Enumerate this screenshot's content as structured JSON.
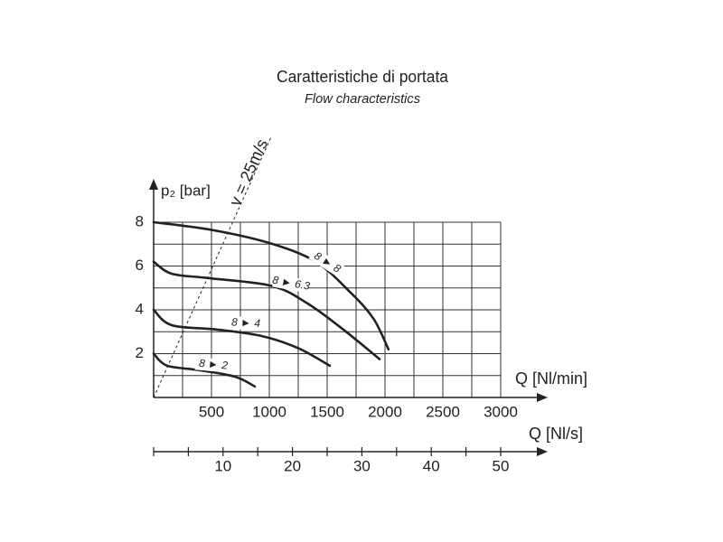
{
  "chart_data": {
    "type": "line",
    "title": "Caratteristiche di portata",
    "subtitle": "Flow characteristics",
    "xlabel": "Q [Nl/min]",
    "ylabel": "p₂ [bar]",
    "xlim": [
      0,
      3000
    ],
    "xticks": [
      500,
      1000,
      1500,
      2000,
      2500,
      3000
    ],
    "xgrid": [
      250,
      500,
      750,
      1000,
      1250,
      1500,
      1750,
      2000,
      2250,
      2500,
      2750,
      3000
    ],
    "ylim": [
      0,
      8
    ],
    "yticks": [
      2,
      4,
      6,
      8
    ],
    "ygrid": [
      1,
      2,
      3,
      4,
      5,
      6,
      7,
      8
    ],
    "x2label": "Q [Nl/s]",
    "x2lim": [
      0,
      50
    ],
    "x2ticks": [
      10,
      20,
      30,
      40,
      50
    ],
    "x2minor_ticks": [
      0,
      5,
      15,
      25,
      35,
      45
    ],
    "reference_line": {
      "label": "v = 25m/s",
      "x": [
        0,
        1016
      ],
      "values": [
        0,
        11.9
      ]
    },
    "series": [
      {
        "name": "8 ► 8",
        "color": "#222222",
        "x": [
          0,
          500,
          1000,
          1400,
          1700,
          1900,
          2030
        ],
        "values": [
          8,
          7.65,
          7.05,
          6.2,
          4.8,
          3.6,
          2.2
        ]
      },
      {
        "name": "8 ► 6.3",
        "color": "#222222",
        "x": [
          0,
          156,
          470,
          1016,
          1328,
          1640,
          1953
        ],
        "values": [
          6.2,
          5.65,
          5.45,
          5.1,
          4.3,
          3.1,
          1.75
        ]
      },
      {
        "name": "8 ► 4",
        "color": "#222222",
        "x": [
          0,
          156,
          547,
          938,
          1250,
          1523
        ],
        "values": [
          4,
          3.3,
          3.1,
          2.8,
          2.25,
          1.45
        ]
      },
      {
        "name": "8 ► 2",
        "color": "#222222",
        "x": [
          0,
          117,
          390,
          703,
          875
        ],
        "values": [
          2,
          1.45,
          1.25,
          0.95,
          0.5
        ]
      }
    ]
  }
}
